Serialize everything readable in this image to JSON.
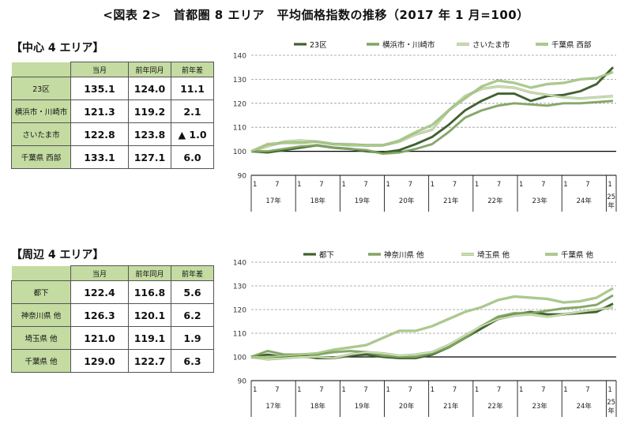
{
  "title": "<図表 2>　首都圏 8 エリア　平均価格指数の推移（2017 年 1 月=100）",
  "colors": {
    "dark": "#3f6030",
    "mid": "#7ea85c",
    "light": "#c8e0a8",
    "lighter": "#a8cf80",
    "header": "#c4dba2"
  },
  "central": {
    "heading": "【中心 4 エリア】",
    "columns": [
      "当月",
      "前年同月",
      "前年差"
    ],
    "rows": [
      {
        "label": "23区",
        "current": "135.1",
        "prev": "124.0",
        "diff": "11.1"
      },
      {
        "label": "横浜市・川崎市",
        "current": "121.3",
        "prev": "119.2",
        "diff": "2.1"
      },
      {
        "label": "さいたま市",
        "current": "122.8",
        "prev": "123.8",
        "diff": "▲ 1.0"
      },
      {
        "label": "千葉県 西部",
        "current": "133.1",
        "prev": "127.1",
        "diff": "6.0"
      }
    ]
  },
  "peripheral": {
    "heading": "【周辺 4 エリア】",
    "columns": [
      "当月",
      "前年同月",
      "前年差"
    ],
    "rows": [
      {
        "label": "都下",
        "current": "122.4",
        "prev": "116.8",
        "diff": "5.6"
      },
      {
        "label": "神奈川県 他",
        "current": "126.3",
        "prev": "120.1",
        "diff": "6.2"
      },
      {
        "label": "埼玉県 他",
        "current": "121.0",
        "prev": "119.1",
        "diff": "1.9"
      },
      {
        "label": "千葉県 他",
        "current": "129.0",
        "prev": "122.7",
        "diff": "6.3"
      }
    ]
  },
  "chart_data": [
    {
      "type": "line",
      "ylim": [
        90,
        140
      ],
      "yticks": [
        "90",
        "100",
        "110",
        "120",
        "130",
        "140"
      ],
      "xticks_month": [
        "1",
        "7",
        "1",
        "7",
        "1",
        "7",
        "1",
        "7",
        "1",
        "7",
        "1",
        "7",
        "1",
        "7",
        "1",
        "7",
        "1"
      ],
      "xticks_year": [
        "17年",
        "18年",
        "19年",
        "20年",
        "21年",
        "22年",
        "23年",
        "24年",
        "25",
        "年"
      ],
      "legend": [
        "23区",
        "横浜市・川崎市",
        "さいたま市",
        "千葉県 西部"
      ],
      "series": [
        {
          "name": "23区",
          "color": "#3f6030",
          "values": [
            100,
            99.5,
            100.5,
            101.5,
            102.5,
            101.5,
            101,
            100,
            99.5,
            100.5,
            103,
            106,
            111,
            117,
            121,
            124,
            124,
            121,
            123,
            123.5,
            125,
            128,
            135
          ]
        },
        {
          "name": "横浜市・川崎市",
          "color": "#7ea85c",
          "values": [
            100,
            100,
            101,
            102,
            102.5,
            101.5,
            101,
            100.5,
            99,
            99.5,
            101,
            103,
            108,
            114,
            117,
            119,
            120,
            119.5,
            119,
            120,
            120,
            120.5,
            121
          ]
        },
        {
          "name": "さいたま市",
          "color": "#c8e0a8",
          "values": [
            100,
            102,
            104,
            104.5,
            104,
            103,
            103,
            102.5,
            102.5,
            104,
            107,
            109,
            117,
            123,
            126,
            127,
            126.5,
            124.5,
            123.5,
            122.5,
            122,
            122.5,
            123
          ]
        },
        {
          "name": "千葉県 西部",
          "color": "#a8cf80",
          "values": [
            100,
            103,
            103.5,
            103.5,
            104,
            103,
            102.5,
            102.5,
            102.5,
            104.5,
            108,
            111,
            117,
            122,
            127,
            129.5,
            128.5,
            126.5,
            128,
            128.5,
            130,
            130.5,
            133
          ]
        }
      ]
    },
    {
      "type": "line",
      "ylim": [
        90,
        140
      ],
      "yticks": [
        "90",
        "100",
        "110",
        "120",
        "130",
        "140"
      ],
      "xticks_month": [
        "1",
        "7",
        "1",
        "7",
        "1",
        "7",
        "1",
        "7",
        "1",
        "7",
        "1",
        "7",
        "1",
        "7",
        "1",
        "7",
        "1"
      ],
      "xticks_year": [
        "17年",
        "18年",
        "19年",
        "20年",
        "21年",
        "22年",
        "23年",
        "24年",
        "25",
        "年"
      ],
      "legend": [
        "都下",
        "神奈川県 他",
        "埼玉県 他",
        "千葉県 他"
      ],
      "series": [
        {
          "name": "都下",
          "color": "#3f6030",
          "values": [
            100,
            101,
            100,
            100.5,
            99.5,
            99.5,
            100.5,
            101,
            100,
            99.5,
            99.5,
            101,
            104,
            108,
            112,
            116,
            118,
            119,
            118,
            118,
            118.5,
            119,
            122.5
          ]
        },
        {
          "name": "神奈川県 他",
          "color": "#7ea85c",
          "values": [
            100,
            102.5,
            101,
            101,
            101,
            102,
            102.5,
            102,
            100.5,
            100,
            100,
            101.5,
            104,
            108,
            113,
            117,
            118.5,
            118.5,
            119.5,
            120.5,
            121,
            122,
            126
          ]
        },
        {
          "name": "埼玉県 他",
          "color": "#c8e0a8",
          "values": [
            100,
            99,
            99.5,
            100,
            100,
            99.5,
            101,
            102,
            101.5,
            100.5,
            101,
            102,
            105,
            109,
            113,
            116,
            117.5,
            118,
            117,
            118,
            119,
            120,
            121
          ]
        },
        {
          "name": "千葉県 他",
          "color": "#a8cf80",
          "values": [
            100,
            100,
            100.5,
            101,
            101.5,
            103,
            104,
            105,
            108,
            111,
            111,
            113,
            116,
            119,
            121,
            124,
            125.5,
            125,
            124.5,
            123,
            123.5,
            125,
            129
          ]
        }
      ]
    }
  ]
}
